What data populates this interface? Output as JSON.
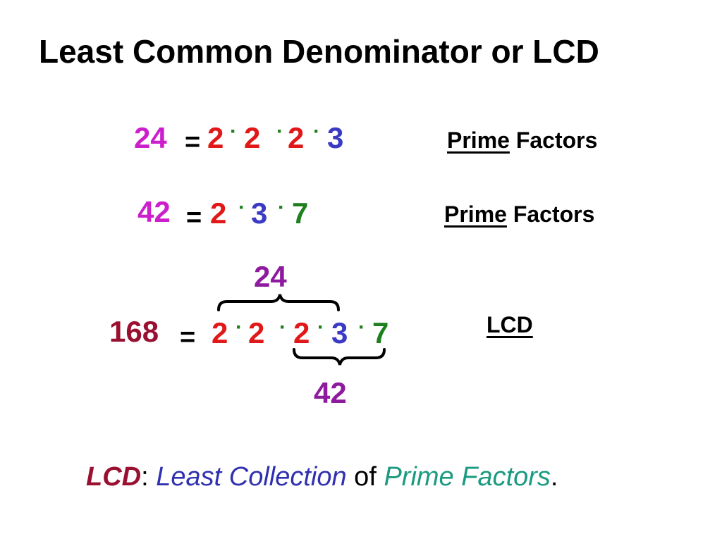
{
  "title": "Least Common Denominator or LCD",
  "colors": {
    "magenta": "#cc1fcc",
    "purple": "#8e1a9e",
    "red": "#e01818",
    "blue": "#3a3ac4",
    "green": "#1e7f1e",
    "maroon": "#9a1030",
    "teal": "#1a9a80",
    "indigo": "#3030b0"
  },
  "row1": {
    "number": "24",
    "equals": "=",
    "factors": [
      "2",
      "2",
      "2",
      "3"
    ],
    "dot": "·",
    "label_underlined": "Prime",
    "label_rest": " Factors"
  },
  "row2": {
    "number": "42",
    "equals": "=",
    "factors": [
      "2",
      "3",
      "7"
    ],
    "dot": "·",
    "label_underlined": "Prime",
    "label_rest": " Factors"
  },
  "row3": {
    "number": "168",
    "equals": "=",
    "factors": [
      "2",
      "2",
      "2",
      "3",
      "7"
    ],
    "dot": "·",
    "label": "LCD",
    "brace_top_label": "24",
    "brace_bottom_label": "42"
  },
  "footer": {
    "lcd": "LCD",
    "colon": ":",
    "least_collection": "Least Collection",
    "of": " of ",
    "prime_factors": "Prime Factors",
    "period": "."
  }
}
